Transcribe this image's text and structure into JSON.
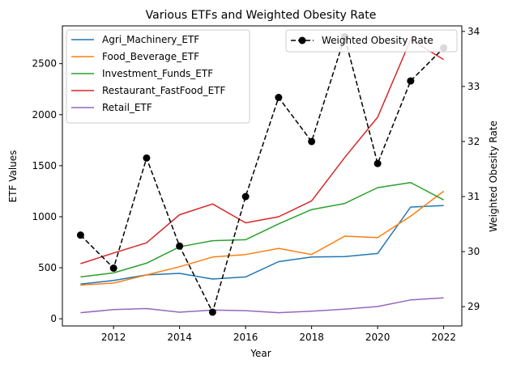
{
  "chart_data": {
    "type": "line",
    "title": "Various ETFs and Weighted Obesity Rate",
    "xlabel": "Year",
    "ylabel": "ETF Values",
    "y2label": "Weighted Obesity Rate",
    "x": [
      2011,
      2012,
      2013,
      2014,
      2015,
      2016,
      2017,
      2018,
      2019,
      2020,
      2021,
      2022
    ],
    "xlim": [
      2010.45,
      2022.55
    ],
    "ylim": [
      -70,
      2870
    ],
    "y2lim": [
      28.65,
      34.1
    ],
    "xticks": [
      2012,
      2014,
      2016,
      2018,
      2020,
      2022
    ],
    "yticks": [
      0,
      500,
      1000,
      1500,
      2000,
      2500
    ],
    "y2ticks": [
      29,
      30,
      31,
      32,
      33,
      34
    ],
    "grid": false,
    "legend_left_placement": "top-left",
    "legend_right_placement": "top-right",
    "series": [
      {
        "name": "Agri_Machinery_ETF",
        "color": "#1f77b4",
        "axis": "left",
        "style": "solid",
        "values": [
          340,
          375,
          430,
          445,
          390,
          410,
          560,
          605,
          610,
          640,
          1095,
          1110
        ]
      },
      {
        "name": "Food_Beverage_ETF",
        "color": "#ff7f0e",
        "axis": "left",
        "style": "solid",
        "values": [
          330,
          350,
          430,
          510,
          605,
          630,
          690,
          630,
          810,
          795,
          1005,
          1250
        ]
      },
      {
        "name": "Investment_Funds_ETF",
        "color": "#2ca02c",
        "axis": "left",
        "style": "solid",
        "values": [
          410,
          450,
          545,
          705,
          765,
          775,
          930,
          1070,
          1130,
          1285,
          1335,
          1165
        ]
      },
      {
        "name": "Restaurant_FastFood_ETF",
        "color": "#d62728",
        "axis": "left",
        "style": "solid",
        "values": [
          540,
          645,
          745,
          1020,
          1125,
          940,
          1000,
          1155,
          1580,
          1975,
          2735,
          2540
        ]
      },
      {
        "name": "Retail_ETF",
        "color": "#9467bd",
        "axis": "left",
        "style": "solid",
        "values": [
          60,
          90,
          100,
          65,
          85,
          80,
          60,
          75,
          95,
          120,
          185,
          205
        ]
      },
      {
        "name": "Weighted Obesity Rate",
        "color": "#000000",
        "axis": "right",
        "style": "dashed",
        "marker": "circle",
        "values": [
          30.3,
          29.7,
          31.7,
          30.1,
          28.9,
          31.0,
          32.8,
          32.0,
          33.9,
          31.6,
          33.1,
          33.7
        ]
      }
    ]
  }
}
